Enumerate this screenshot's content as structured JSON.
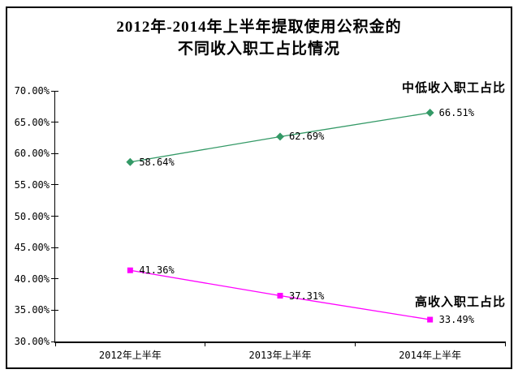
{
  "title": {
    "line1": "2012年-2014年上半年提取使用公积金的",
    "line2": "不同收入职工占比情况"
  },
  "chart_data": {
    "type": "line",
    "categories": [
      "2012年上半年",
      "2013年上半年",
      "2014年上半年"
    ],
    "series": [
      {
        "name": "中低收入职工占比",
        "values": [
          58.64,
          62.69,
          66.51
        ],
        "labels": [
          "58.64%",
          "62.69%",
          "66.51%"
        ],
        "color": "#339966",
        "marker": "diamond"
      },
      {
        "name": "高收入职工占比",
        "values": [
          41.36,
          37.31,
          33.49
        ],
        "labels": [
          "41.36%",
          "37.31%",
          "33.49%"
        ],
        "color": "#FF00FF",
        "marker": "square"
      }
    ],
    "xlabel": "",
    "ylabel": "",
    "ylim": [
      30,
      70
    ],
    "ytick_step": 5,
    "ytick_labels": [
      "70.00%",
      "65.00%",
      "60.00%",
      "55.00%",
      "50.00%",
      "45.00%",
      "40.00%",
      "35.00%",
      "30.00%"
    ],
    "grid": false,
    "legend_position": "inline-annotations"
  }
}
